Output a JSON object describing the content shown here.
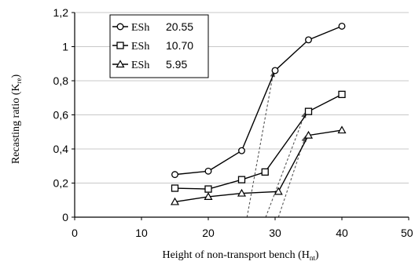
{
  "chart_data": {
    "type": "line",
    "title": "",
    "xlabel": "Height of non-transport bench (H",
    "xlabel_sub": "nt",
    "xlabel_end": ")",
    "ylabel": "Recasting ratio (K",
    "ylabel_sub": "re",
    "ylabel_end": ")",
    "xlim": [
      0,
      50
    ],
    "ylim": [
      0,
      1.2
    ],
    "x_ticks": [
      "0",
      "10",
      "20",
      "30",
      "40",
      "50"
    ],
    "y_ticks": [
      "0",
      "0,2",
      "0,4",
      "0,6",
      "0,8",
      "1",
      "1,2"
    ],
    "grid": "horizontal",
    "legend_placement": "top-left",
    "series": [
      {
        "name": "ESh",
        "value_label": "20.55",
        "marker": "circle",
        "x": [
          15,
          20,
          25,
          30,
          35,
          40
        ],
        "y": [
          0.25,
          0.27,
          0.39,
          0.86,
          1.04,
          1.12
        ]
      },
      {
        "name": "ESh",
        "value_label": "10.70",
        "marker": "square",
        "x": [
          15,
          20,
          25,
          28.5,
          35,
          40
        ],
        "y": [
          0.17,
          0.165,
          0.22,
          0.265,
          0.62,
          0.72
        ]
      },
      {
        "name": "ESh",
        "value_label": "5.95",
        "marker": "triangle",
        "x": [
          15,
          20,
          25,
          30.5,
          35,
          40
        ],
        "y": [
          0.09,
          0.12,
          0.14,
          0.15,
          0.48,
          0.51
        ]
      }
    ],
    "dashed_guides": [
      {
        "x_from": 25.8,
        "y_from": 0,
        "x_to": 29.8,
        "y_to": 0.86
      },
      {
        "x_from": 28.6,
        "y_from": 0,
        "x_to": 34.6,
        "y_to": 0.62
      },
      {
        "x_from": 30.5,
        "y_from": 0,
        "x_to": 34.6,
        "y_to": 0.48
      }
    ]
  }
}
